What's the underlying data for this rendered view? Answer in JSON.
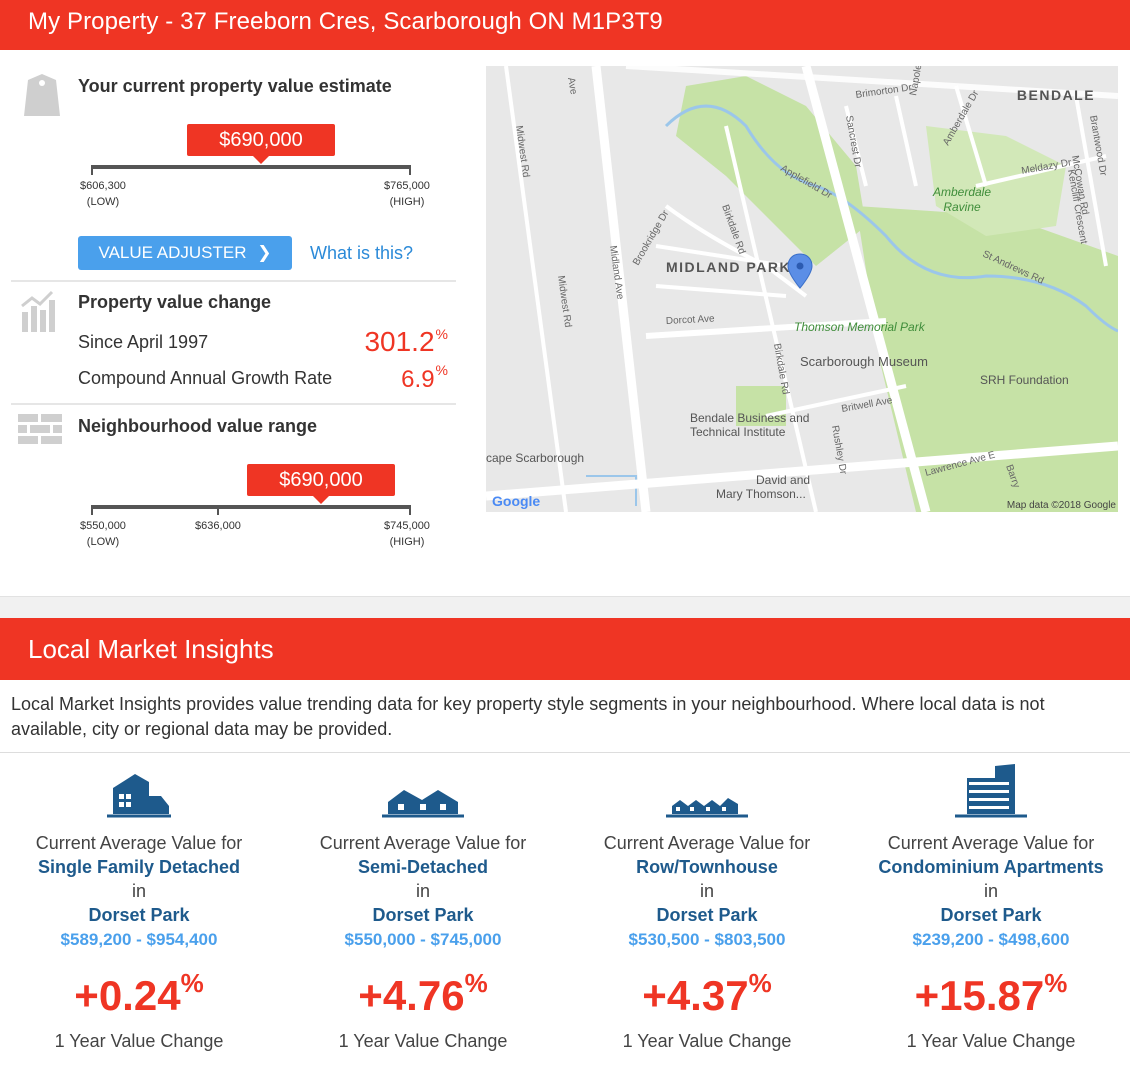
{
  "header": {
    "title": "My Property - 37 Freeborn Cres, Scarborough ON M1P3T9"
  },
  "estimate": {
    "title": "Your current property value estimate",
    "value": "$690,000",
    "low_value": "$606,300",
    "low_label": "(LOW)",
    "high_value": "$765,000",
    "high_label": "(HIGH)",
    "adjuster_label": "VALUE ADJUSTER",
    "what_is_this": "What is this?"
  },
  "change": {
    "title": "Property value change",
    "since_label": "Since April 1997",
    "since_value": "301.2",
    "cagr_label": "Compound Annual Growth Rate",
    "cagr_value": "6.9",
    "pct": "%"
  },
  "neighbourhood": {
    "title": "Neighbourhood value range",
    "value": "$690,000",
    "low_value": "$550,000",
    "low_label": "(LOW)",
    "mid_value": "$636,000",
    "high_value": "$745,000",
    "high_label": "(HIGH)"
  },
  "map": {
    "labels": {
      "bendale": "BENDALE",
      "midland_park": "MIDLAND PARK",
      "amberdale": "Amberdale",
      "ravine": "Ravine",
      "thomson": "Thomson Memorial Park",
      "museum": "Scarborough Museum",
      "srh": "SRH Foundation",
      "bendale_bti1": "Bendale Business and",
      "bendale_bti2": "Technical Institute",
      "scape": "cape Scarborough",
      "david1": "David and",
      "david2": "Mary Thomson...",
      "midwest_rd": "Midwest Rd",
      "midland_ave": "Midland Ave",
      "dorcot": "Dorcot Ave",
      "birkdale": "Birkdale Rd",
      "brookridge": "Brookridge Dr",
      "applefield": "Applefield Dr",
      "brimorton": "Brimorton Dr",
      "sancrest": "Sancrest Dr",
      "napoleon": "Napoleon Dr",
      "amberdale_dr": "Amberdale Dr",
      "meldazy": "Meldazy Dr",
      "mccowan": "McCowan Rd",
      "kencliff": "Kencliff Crescent",
      "brantwood": "Brantwood Dr",
      "st_andrews": "St Andrews Rd",
      "britwell": "Britwell Ave",
      "rushley": "Rushley Dr",
      "lawrence": "Lawrence Ave E",
      "barry": "Barry",
      "ave": "Ave",
      "google": "Google",
      "attribution": "Map data ©2018 Google"
    }
  },
  "insights": {
    "title": "Local Market Insights",
    "description": "Local Market Insights provides value trending data for key property style segments in your neighbourhood. Where local data is not available, city or regional data may be provided.",
    "cols": [
      {
        "l1": "Current Average Value for",
        "type": "Single Family Detached",
        "in": "in",
        "area": "Dorset Park",
        "range": "$589,200 - $954,400",
        "change": "+0.24",
        "pct": "%",
        "label": "1 Year Value Change"
      },
      {
        "l1": "Current Average Value for",
        "type": "Semi-Detached",
        "in": "in",
        "area": "Dorset Park",
        "range": "$550,000 - $745,000",
        "change": "+4.76",
        "pct": "%",
        "label": "1 Year Value Change"
      },
      {
        "l1": "Current Average Value for",
        "type": "Row/Townhouse",
        "in": "in",
        "area": "Dorset Park",
        "range": "$530,500 - $803,500",
        "change": "+4.37",
        "pct": "%",
        "label": "1 Year Value Change"
      },
      {
        "l1": "Current Average Value for",
        "type": "Condominium Apartments",
        "in": "in",
        "area": "Dorset Park",
        "range": "$239,200 - $498,600",
        "change": "+15.87",
        "pct": "%",
        "label": "1 Year Value Change"
      }
    ]
  }
}
